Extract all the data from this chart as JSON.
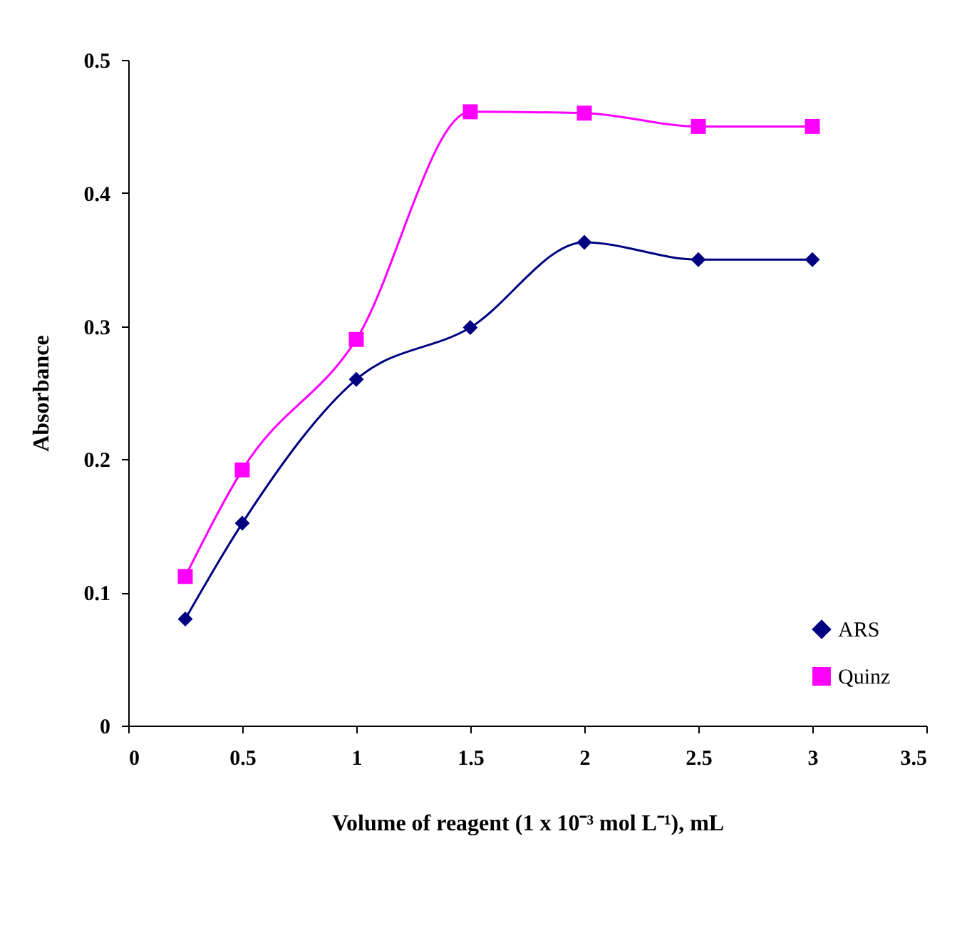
{
  "chart_data": {
    "type": "line",
    "xlabel": "Volume of reagent (1 x 10⁻³ mol L⁻¹), mL",
    "ylabel": "Absorbance",
    "x": [
      0.25,
      0.5,
      1,
      1.5,
      2,
      2.5,
      3
    ],
    "series": [
      {
        "name": "ARS",
        "color": "#000080",
        "marker": "diamond",
        "values": [
          0.08,
          0.152,
          0.26,
          0.299,
          0.363,
          0.35,
          0.35
        ]
      },
      {
        "name": "Quinz",
        "color": "#ff00ff",
        "marker": "square",
        "values": [
          0.112,
          0.192,
          0.29,
          0.461,
          0.46,
          0.45,
          0.45
        ]
      }
    ],
    "xlim": [
      0,
      3.5
    ],
    "xticks": [
      0,
      0.5,
      1,
      1.5,
      2,
      2.5,
      3,
      3.5
    ],
    "ylim": [
      0,
      0.5
    ],
    "yticks": [
      0,
      0.1,
      0.2,
      0.3,
      0.4,
      0.5
    ],
    "grid": false,
    "legend": "bottom right",
    "line_style": "solid"
  }
}
